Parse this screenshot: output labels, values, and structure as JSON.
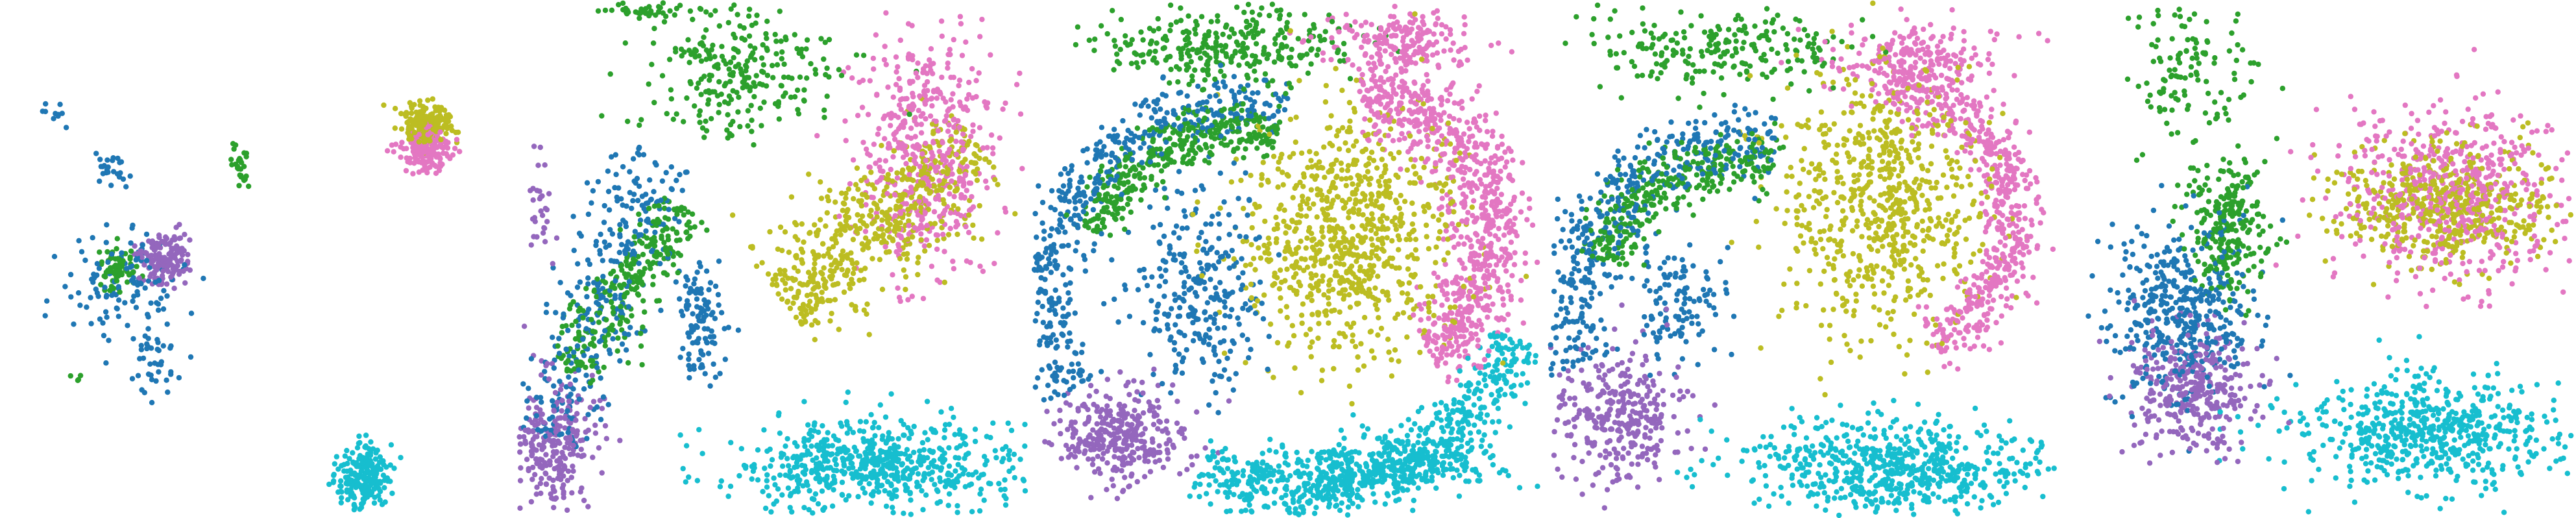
{
  "colors": {
    "c1": "#1f77b4",
    "c2": "#2ca02c",
    "c3": "#9467bd",
    "c4": "#bcbd22",
    "c5": "#e377c2",
    "c6": "#17becf"
  },
  "chart_data": [
    {
      "type": "scatter",
      "xlim": [
        0,
        1
      ],
      "ylim": [
        0,
        1
      ],
      "grid": false,
      "legend": "none",
      "clusters": [
        {
          "color": "c1",
          "kind": "blob",
          "cx": 0.24,
          "cy": 0.55,
          "rx": 0.12,
          "ry": 0.1,
          "n": 110
        },
        {
          "color": "c1",
          "kind": "blob",
          "cx": 0.3,
          "cy": 0.7,
          "rx": 0.07,
          "ry": 0.08,
          "n": 40
        },
        {
          "color": "c1",
          "kind": "blob",
          "cx": 0.22,
          "cy": 0.33,
          "rx": 0.05,
          "ry": 0.04,
          "n": 25
        },
        {
          "color": "c1",
          "kind": "blob",
          "cx": 0.1,
          "cy": 0.22,
          "rx": 0.04,
          "ry": 0.04,
          "n": 10
        },
        {
          "color": "c3",
          "kind": "blob",
          "cx": 0.32,
          "cy": 0.5,
          "rx": 0.05,
          "ry": 0.05,
          "n": 160
        },
        {
          "color": "c2",
          "kind": "blob",
          "cx": 0.23,
          "cy": 0.52,
          "rx": 0.03,
          "ry": 0.04,
          "n": 70
        },
        {
          "color": "c2",
          "kind": "blob",
          "cx": 0.47,
          "cy": 0.32,
          "rx": 0.02,
          "ry": 0.04,
          "n": 28
        },
        {
          "color": "c2",
          "kind": "blob",
          "cx": 0.15,
          "cy": 0.73,
          "rx": 0.01,
          "ry": 0.01,
          "n": 4
        },
        {
          "color": "c4",
          "kind": "blob",
          "cx": 0.83,
          "cy": 0.24,
          "rx": 0.05,
          "ry": 0.04,
          "n": 200
        },
        {
          "color": "c5",
          "kind": "blob",
          "cx": 0.83,
          "cy": 0.29,
          "rx": 0.05,
          "ry": 0.04,
          "n": 170
        },
        {
          "color": "c6",
          "kind": "blob",
          "cx": 0.71,
          "cy": 0.92,
          "rx": 0.05,
          "ry": 0.06,
          "n": 230
        }
      ]
    },
    {
      "type": "scatter",
      "xlim": [
        0,
        1
      ],
      "ylim": [
        0,
        1
      ],
      "grid": false,
      "legend": "none",
      "clusters": [
        {
          "color": "c2",
          "kind": "blob",
          "cx": 0.45,
          "cy": 0.14,
          "rx": 0.2,
          "ry": 0.12,
          "n": 260
        },
        {
          "color": "c2",
          "kind": "blob",
          "cx": 0.25,
          "cy": 0.02,
          "rx": 0.1,
          "ry": 0.02,
          "n": 40
        },
        {
          "color": "c2",
          "kind": "band",
          "x1": 0.1,
          "y1": 0.72,
          "x2": 0.33,
          "y2": 0.4,
          "w": 0.06,
          "n": 280
        },
        {
          "color": "c1",
          "kind": "band",
          "x1": 0.05,
          "y1": 0.85,
          "x2": 0.28,
          "y2": 0.3,
          "w": 0.09,
          "n": 320
        },
        {
          "color": "c1",
          "kind": "blob",
          "cx": 0.36,
          "cy": 0.62,
          "rx": 0.05,
          "ry": 0.1,
          "n": 110
        },
        {
          "color": "c3",
          "kind": "blob",
          "cx": 0.08,
          "cy": 0.86,
          "rx": 0.08,
          "ry": 0.13,
          "n": 260
        },
        {
          "color": "c3",
          "kind": "blob",
          "cx": 0.05,
          "cy": 0.4,
          "rx": 0.03,
          "ry": 0.1,
          "n": 30
        },
        {
          "color": "c4",
          "kind": "band",
          "x1": 0.52,
          "y1": 0.58,
          "x2": 0.9,
          "y2": 0.28,
          "w": 0.11,
          "n": 560
        },
        {
          "color": "c5",
          "kind": "blob",
          "cx": 0.8,
          "cy": 0.28,
          "rx": 0.13,
          "ry": 0.24,
          "n": 480
        },
        {
          "color": "c6",
          "kind": "blob",
          "cx": 0.7,
          "cy": 0.9,
          "rx": 0.28,
          "ry": 0.09,
          "n": 640
        }
      ]
    },
    {
      "type": "scatter",
      "xlim": [
        0,
        1
      ],
      "ylim": [
        0,
        1
      ],
      "grid": false,
      "legend": "none",
      "clusters": [
        {
          "color": "c2",
          "kind": "blob",
          "cx": 0.38,
          "cy": 0.09,
          "rx": 0.23,
          "ry": 0.08,
          "n": 300
        },
        {
          "color": "c2",
          "kind": "arc",
          "cx": 0.4,
          "cy": 0.55,
          "r": 0.3,
          "a1": 200,
          "a2": 285,
          "w": 0.05,
          "n": 360
        },
        {
          "color": "c1",
          "kind": "arc",
          "cx": 0.4,
          "cy": 0.57,
          "r": 0.37,
          "a1": 150,
          "a2": 285,
          "w": 0.06,
          "n": 480
        },
        {
          "color": "c1",
          "kind": "blob",
          "cx": 0.33,
          "cy": 0.56,
          "rx": 0.13,
          "ry": 0.2,
          "n": 280
        },
        {
          "color": "c3",
          "kind": "blob",
          "cx": 0.17,
          "cy": 0.84,
          "rx": 0.13,
          "ry": 0.09,
          "n": 330
        },
        {
          "color": "c4",
          "kind": "blob",
          "cx": 0.62,
          "cy": 0.45,
          "rx": 0.21,
          "ry": 0.24,
          "n": 800
        },
        {
          "color": "c5",
          "kind": "arc",
          "cx": 0.64,
          "cy": 0.45,
          "r": 0.26,
          "a1": 270,
          "a2": 420,
          "w": 0.08,
          "n": 800
        },
        {
          "color": "c5",
          "kind": "blob",
          "cx": 0.72,
          "cy": 0.08,
          "rx": 0.14,
          "ry": 0.06,
          "n": 200
        },
        {
          "color": "c6",
          "kind": "arc",
          "cx": 0.52,
          "cy": 0.5,
          "r": 0.45,
          "a1": 20,
          "a2": 115,
          "w": 0.06,
          "n": 620
        },
        {
          "color": "c6",
          "kind": "blob",
          "cx": 0.68,
          "cy": 0.9,
          "rx": 0.22,
          "ry": 0.06,
          "n": 320
        }
      ]
    },
    {
      "type": "scatter",
      "xlim": [
        0,
        1
      ],
      "ylim": [
        0,
        1
      ],
      "grid": false,
      "legend": "none",
      "clusters": [
        {
          "color": "c2",
          "kind": "blob",
          "cx": 0.35,
          "cy": 0.1,
          "rx": 0.25,
          "ry": 0.08,
          "n": 220
        },
        {
          "color": "c2",
          "kind": "arc",
          "cx": 0.36,
          "cy": 0.57,
          "r": 0.26,
          "a1": 195,
          "a2": 290,
          "w": 0.06,
          "n": 320
        },
        {
          "color": "c1",
          "kind": "arc",
          "cx": 0.36,
          "cy": 0.6,
          "r": 0.32,
          "a1": 160,
          "a2": 285,
          "w": 0.07,
          "n": 420
        },
        {
          "color": "c1",
          "kind": "blob",
          "cx": 0.25,
          "cy": 0.58,
          "rx": 0.1,
          "ry": 0.12,
          "n": 120
        },
        {
          "color": "c3",
          "kind": "blob",
          "cx": 0.14,
          "cy": 0.8,
          "rx": 0.12,
          "ry": 0.13,
          "n": 320
        },
        {
          "color": "c4",
          "kind": "blob",
          "cx": 0.66,
          "cy": 0.4,
          "rx": 0.2,
          "ry": 0.24,
          "n": 700
        },
        {
          "color": "c5",
          "kind": "arc",
          "cx": 0.66,
          "cy": 0.42,
          "r": 0.25,
          "a1": 270,
          "a2": 430,
          "w": 0.06,
          "n": 560
        },
        {
          "color": "c5",
          "kind": "blob",
          "cx": 0.72,
          "cy": 0.12,
          "rx": 0.16,
          "ry": 0.08,
          "n": 220
        },
        {
          "color": "c6",
          "kind": "blob",
          "cx": 0.68,
          "cy": 0.9,
          "rx": 0.3,
          "ry": 0.09,
          "n": 650
        }
      ]
    },
    {
      "type": "scatter",
      "xlim": [
        0,
        1
      ],
      "ylim": [
        0,
        1
      ],
      "grid": false,
      "legend": "none",
      "clusters": [
        {
          "color": "c2",
          "kind": "blob",
          "cx": 0.25,
          "cy": 0.13,
          "rx": 0.12,
          "ry": 0.14,
          "n": 120
        },
        {
          "color": "c2",
          "kind": "blob",
          "cx": 0.32,
          "cy": 0.45,
          "rx": 0.08,
          "ry": 0.14,
          "n": 260
        },
        {
          "color": "c1",
          "kind": "blob",
          "cx": 0.23,
          "cy": 0.6,
          "rx": 0.14,
          "ry": 0.18,
          "n": 420
        },
        {
          "color": "c3",
          "kind": "blob",
          "cx": 0.25,
          "cy": 0.75,
          "rx": 0.12,
          "ry": 0.12,
          "n": 340
        },
        {
          "color": "c4",
          "kind": "blob",
          "cx": 0.75,
          "cy": 0.4,
          "rx": 0.2,
          "ry": 0.12,
          "n": 520
        },
        {
          "color": "c5",
          "kind": "blob",
          "cx": 0.76,
          "cy": 0.37,
          "rx": 0.22,
          "ry": 0.17,
          "n": 560
        },
        {
          "color": "c6",
          "kind": "blob",
          "cx": 0.72,
          "cy": 0.83,
          "rx": 0.26,
          "ry": 0.11,
          "n": 620
        }
      ]
    }
  ]
}
